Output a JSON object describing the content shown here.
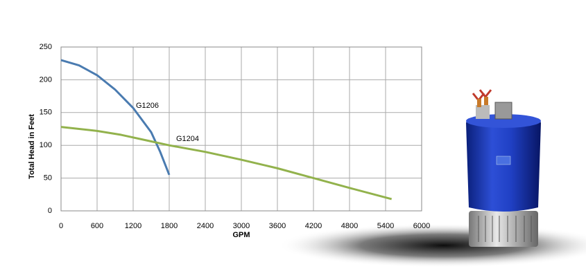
{
  "chart_data": {
    "type": "line",
    "x_label": "GPM",
    "y_label": "Total Head in Feet",
    "xlim": [
      0,
      6000
    ],
    "xticks": [
      0,
      600,
      1200,
      1800,
      2400,
      3000,
      3600,
      4200,
      4800,
      5400,
      6000
    ],
    "ylim": [
      0,
      250
    ],
    "yticks": [
      0,
      50,
      100,
      150,
      200,
      250
    ],
    "grid": true,
    "series": [
      {
        "name": "G1206",
        "color": "#4a7bb0",
        "x": [
          0,
          300,
          600,
          900,
          1200,
          1500,
          1650,
          1800
        ],
        "values": [
          230,
          222,
          207,
          185,
          157,
          120,
          90,
          55
        ]
      },
      {
        "name": "G1204",
        "color": "#92b24c",
        "x": [
          0,
          600,
          1000,
          1500,
          1800,
          2400,
          3000,
          3600,
          4200,
          4800,
          5500
        ],
        "values": [
          128,
          122,
          116,
          106,
          100,
          90,
          78,
          65,
          50,
          35,
          18
        ]
      }
    ]
  }
}
